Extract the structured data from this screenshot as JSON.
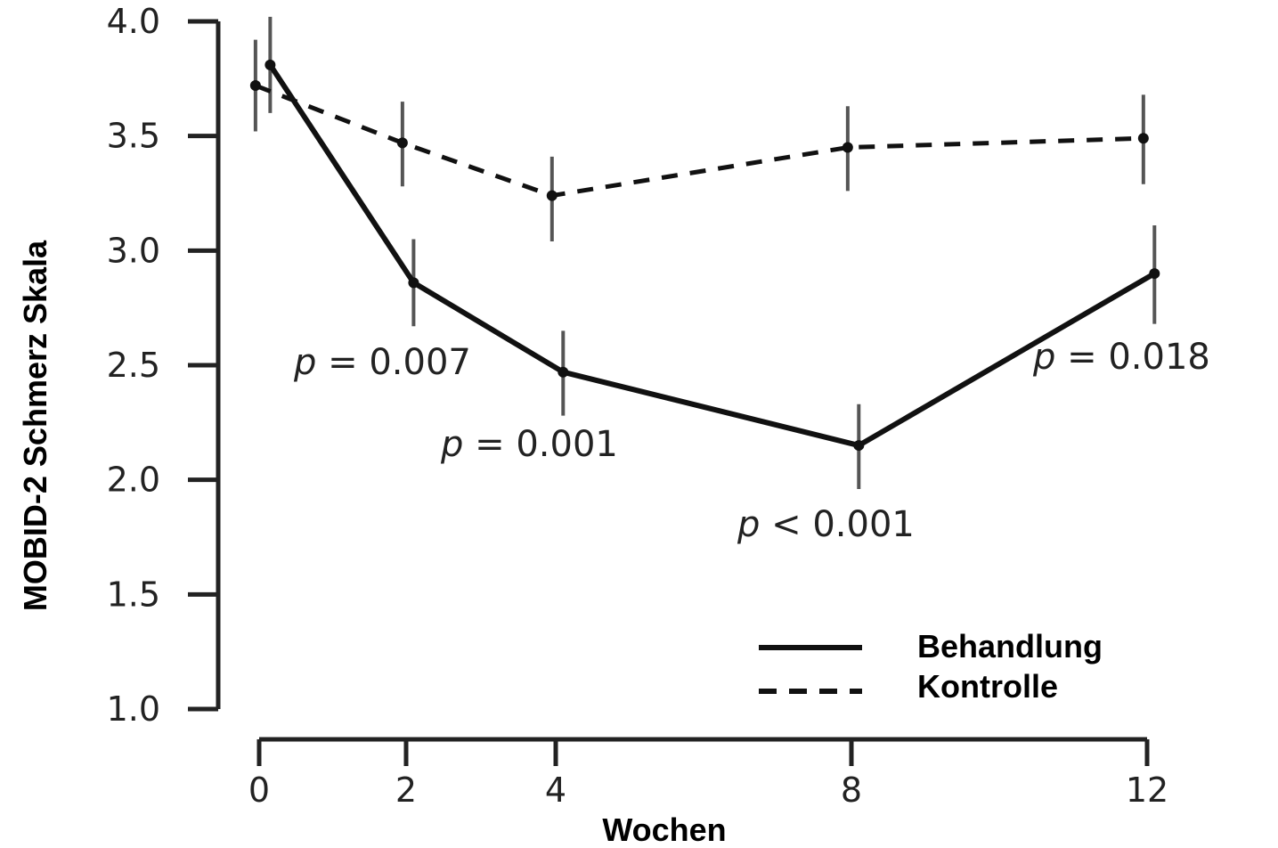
{
  "chart_data": {
    "type": "line",
    "xlabel": "Wochen",
    "ylabel": "MOBID-2 Schmerz Skala",
    "x_ticks": [
      "0",
      "2",
      "4",
      "8",
      "12"
    ],
    "y_ticks": [
      "1.0",
      "1.5",
      "2.0",
      "2.5",
      "3.0",
      "3.5",
      "4.0"
    ],
    "xlim": [
      0,
      12
    ],
    "ylim": [
      1.0,
      4.0
    ],
    "grid": false,
    "legend_position": "bottom-right",
    "series": [
      {
        "name": "Behandlung",
        "line_style": "solid",
        "x": [
          0.15,
          2.1,
          4.1,
          8.1,
          12.1
        ],
        "y": [
          3.81,
          2.86,
          2.47,
          2.15,
          2.9
        ],
        "err_low": [
          3.6,
          2.67,
          2.28,
          1.96,
          2.68
        ],
        "err_high": [
          4.02,
          3.05,
          2.65,
          2.33,
          3.11
        ]
      },
      {
        "name": "Kontrolle",
        "line_style": "dashed",
        "x": [
          -0.05,
          1.95,
          3.95,
          7.95,
          11.95
        ],
        "y": [
          3.72,
          3.47,
          3.24,
          3.45,
          3.49
        ],
        "err_low": [
          3.52,
          3.28,
          3.04,
          3.26,
          3.29
        ],
        "err_high": [
          3.92,
          3.65,
          3.41,
          3.63,
          3.68
        ]
      }
    ],
    "annotations": [
      {
        "p": "p",
        "rest": " = 0.007"
      },
      {
        "p": "p",
        "rest": " = 0.001"
      },
      {
        "p": "p",
        "rest": " < 0.001"
      },
      {
        "p": "p",
        "rest": " = 0.018"
      }
    ],
    "colors": {
      "line": "#111111",
      "error_bar": "#555555",
      "axis": "#222222"
    }
  }
}
